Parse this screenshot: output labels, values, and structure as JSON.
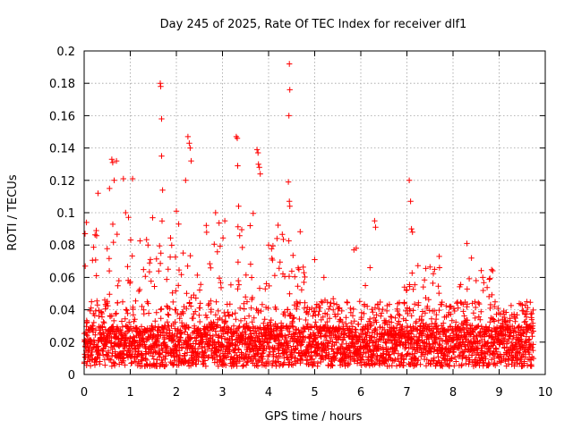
{
  "chart_data": {
    "type": "scatter",
    "title": "Day 245 of 2025, Rate Of TEC Index for receiver dlf1",
    "xlabel": "GPS time / hours",
    "ylabel": "ROTI / TECUs",
    "xlim": [
      0,
      10
    ],
    "ylim": [
      0,
      0.2
    ],
    "x_ticks": [
      "0",
      "1",
      "2",
      "3",
      "4",
      "5",
      "6",
      "7",
      "8",
      "9",
      "10"
    ],
    "y_ticks": [
      "0",
      "0.02",
      "0.04",
      "0.06",
      "0.08",
      "0.1",
      "0.12",
      "0.14",
      "0.16",
      "0.18",
      "0.2"
    ],
    "grid": true,
    "marker": "+",
    "series_color": "#ff0000",
    "data_range_hours": [
      0,
      9.75
    ],
    "baseline_band": [
      0.005,
      0.03
    ],
    "series": [
      {
        "name": "dlf1 ROTI",
        "notable_points": [
          {
            "x": 1.65,
            "y": 0.18
          },
          {
            "x": 1.66,
            "y": 0.178
          },
          {
            "x": 1.68,
            "y": 0.158
          },
          {
            "x": 1.68,
            "y": 0.135
          },
          {
            "x": 1.7,
            "y": 0.114
          },
          {
            "x": 2.25,
            "y": 0.147
          },
          {
            "x": 2.28,
            "y": 0.143
          },
          {
            "x": 2.3,
            "y": 0.14
          },
          {
            "x": 2.32,
            "y": 0.132
          },
          {
            "x": 3.3,
            "y": 0.147
          },
          {
            "x": 3.32,
            "y": 0.146
          },
          {
            "x": 3.33,
            "y": 0.129
          },
          {
            "x": 3.75,
            "y": 0.139
          },
          {
            "x": 3.77,
            "y": 0.137
          },
          {
            "x": 3.78,
            "y": 0.13
          },
          {
            "x": 3.8,
            "y": 0.128
          },
          {
            "x": 3.82,
            "y": 0.124
          },
          {
            "x": 4.45,
            "y": 0.192
          },
          {
            "x": 4.46,
            "y": 0.176
          },
          {
            "x": 4.44,
            "y": 0.16
          },
          {
            "x": 4.43,
            "y": 0.119
          },
          {
            "x": 4.45,
            "y": 0.107
          },
          {
            "x": 4.46,
            "y": 0.104
          },
          {
            "x": 7.05,
            "y": 0.12
          },
          {
            "x": 7.08,
            "y": 0.107
          },
          {
            "x": 7.1,
            "y": 0.09
          },
          {
            "x": 7.12,
            "y": 0.088
          },
          {
            "x": 0.6,
            "y": 0.133
          },
          {
            "x": 0.62,
            "y": 0.131
          },
          {
            "x": 0.7,
            "y": 0.132
          },
          {
            "x": 0.65,
            "y": 0.12
          },
          {
            "x": 0.55,
            "y": 0.115
          },
          {
            "x": 0.3,
            "y": 0.112
          },
          {
            "x": 0.85,
            "y": 0.121
          },
          {
            "x": 1.05,
            "y": 0.121
          },
          {
            "x": 0.9,
            "y": 0.1
          },
          {
            "x": 2.0,
            "y": 0.101
          },
          {
            "x": 2.05,
            "y": 0.093
          },
          {
            "x": 2.2,
            "y": 0.12
          },
          {
            "x": 2.85,
            "y": 0.1
          },
          {
            "x": 3.05,
            "y": 0.095
          },
          {
            "x": 3.35,
            "y": 0.104
          },
          {
            "x": 3.6,
            "y": 0.092
          },
          {
            "x": 0.05,
            "y": 0.094
          },
          {
            "x": 0.02,
            "y": 0.087
          },
          {
            "x": 4.0,
            "y": 0.08
          },
          {
            "x": 5.0,
            "y": 0.071
          },
          {
            "x": 5.2,
            "y": 0.06
          },
          {
            "x": 5.85,
            "y": 0.077
          },
          {
            "x": 5.9,
            "y": 0.078
          },
          {
            "x": 6.2,
            "y": 0.066
          },
          {
            "x": 6.3,
            "y": 0.095
          },
          {
            "x": 6.32,
            "y": 0.091
          },
          {
            "x": 6.1,
            "y": 0.055
          },
          {
            "x": 8.3,
            "y": 0.081
          },
          {
            "x": 8.4,
            "y": 0.072
          },
          {
            "x": 7.7,
            "y": 0.073
          },
          {
            "x": 7.6,
            "y": 0.065
          },
          {
            "x": 8.5,
            "y": 0.058
          },
          {
            "x": 9.6,
            "y": 0.045
          }
        ]
      }
    ]
  }
}
